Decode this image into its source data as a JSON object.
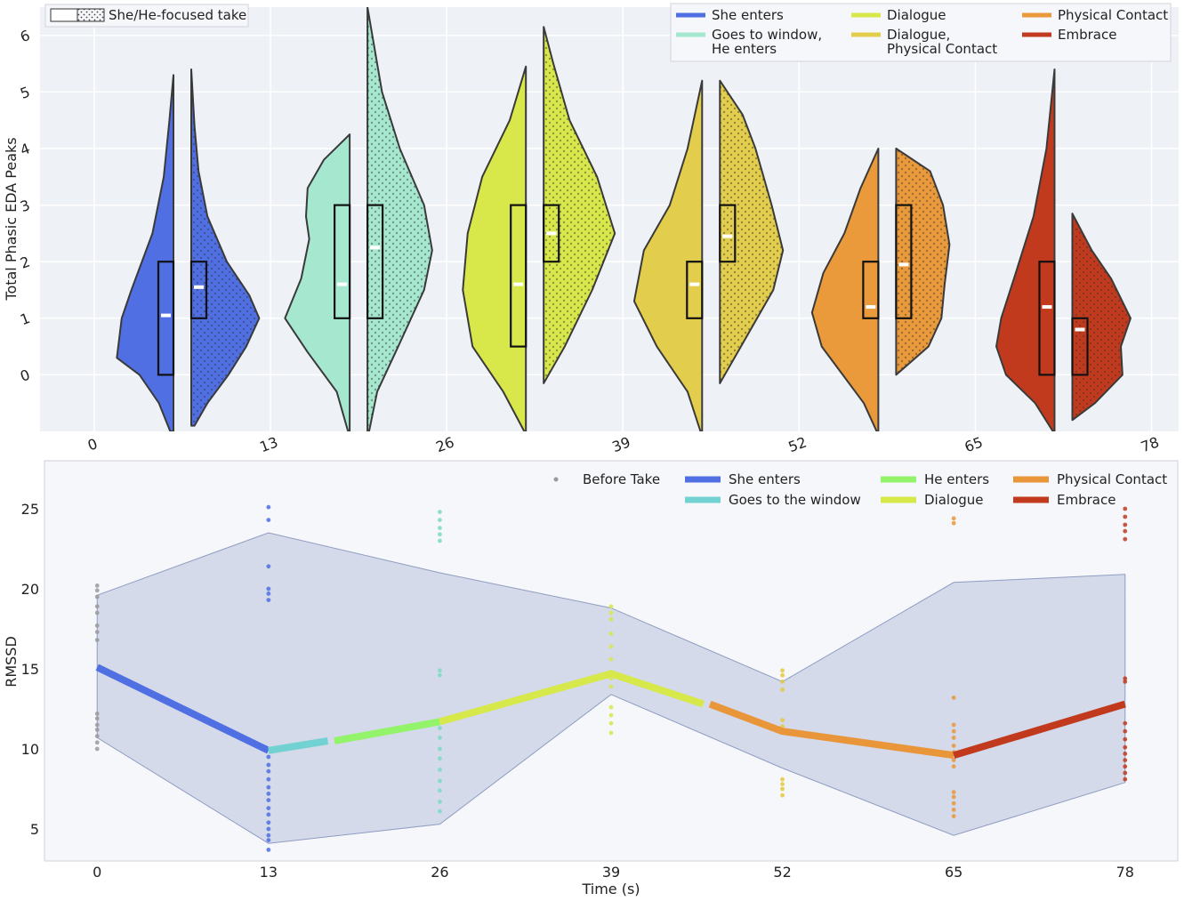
{
  "chart_data": [
    {
      "type": "violin",
      "ylabel": "Total Phasic EDA Peaks",
      "xlabel": "",
      "ylim": [
        -1,
        6.5
      ],
      "y_ticks": [
        0,
        1,
        2,
        3,
        4,
        5,
        6
      ],
      "x_ticks": [
        0,
        13,
        26,
        39,
        52,
        65,
        78
      ],
      "xlim": [
        -4,
        80
      ],
      "take_legend_label": "She/He-focused take",
      "legend": [
        "She enters",
        "Goes to window,\nHe enters",
        "Dialogue",
        "Dialogue,\nPhysical Contact",
        "Physical Contact",
        "Embrace"
      ],
      "groups": [
        {
          "name": "She enters",
          "color": "#4f6fe3",
          "x": 6.5,
          "she": {
            "min": -1,
            "max": 5.3,
            "q1": 0,
            "median": 1.05,
            "q3": 2,
            "mean": 1.05,
            "profile": [
              [
                -1,
                0.2
              ],
              [
                -0.5,
                0.9
              ],
              [
                0,
                2.1
              ],
              [
                0.3,
                3.5
              ],
              [
                1,
                3.2
              ],
              [
                1.5,
                2.6
              ],
              [
                2.5,
                1.3
              ],
              [
                3.5,
                0.6
              ],
              [
                4.5,
                0.25
              ],
              [
                5.3,
                0
              ]
            ]
          },
          "he": {
            "min": -0.9,
            "max": 5.4,
            "q1": 1,
            "median": 1.55,
            "q3": 2,
            "mean": 1.55,
            "profile": [
              [
                -0.9,
                0.2
              ],
              [
                -0.5,
                1.0
              ],
              [
                0,
                2.3
              ],
              [
                0.5,
                3.4
              ],
              [
                1,
                4.2
              ],
              [
                1.4,
                3.6
              ],
              [
                2,
                2.2
              ],
              [
                2.8,
                1.0
              ],
              [
                3.6,
                0.45
              ],
              [
                4.4,
                0.2
              ],
              [
                5.4,
                0
              ]
            ]
          }
        },
        {
          "name": "Goes to window, He enters",
          "color": "#a6e8cf",
          "x": 19.5,
          "she": {
            "min": -1,
            "max": 4.25,
            "q1": 1,
            "median": 1.6,
            "q3": 3,
            "mean": 1.6,
            "profile": [
              [
                -1,
                0.1
              ],
              [
                -0.3,
                0.8
              ],
              [
                0.4,
                2.6
              ],
              [
                1,
                4.0
              ],
              [
                1.7,
                3.0
              ],
              [
                2.4,
                2.5
              ],
              [
                2.8,
                2.7
              ],
              [
                3.3,
                2.6
              ],
              [
                3.8,
                1.6
              ],
              [
                4.25,
                0
              ]
            ]
          },
          "he": {
            "min": -1,
            "max": 6.5,
            "q1": 1,
            "median": 2.25,
            "q3": 3,
            "mean": 2.25,
            "profile": [
              [
                -1,
                0.1
              ],
              [
                -0.3,
                0.6
              ],
              [
                0.5,
                1.9
              ],
              [
                1.5,
                3.5
              ],
              [
                2.2,
                4.0
              ],
              [
                3,
                3.5
              ],
              [
                4,
                2.0
              ],
              [
                5,
                0.9
              ],
              [
                6,
                0.3
              ],
              [
                6.5,
                0
              ]
            ]
          }
        },
        {
          "name": "Dialogue",
          "color": "#d8e84a",
          "x": 32.5,
          "she": {
            "min": -1,
            "max": 5.45,
            "q1": 0.5,
            "median": 1.6,
            "q3": 3,
            "mean": 1.6,
            "profile": [
              [
                -1,
                0.1
              ],
              [
                -0.3,
                1.4
              ],
              [
                0.5,
                3.3
              ],
              [
                1.5,
                3.9
              ],
              [
                2.5,
                3.6
              ],
              [
                3.5,
                2.7
              ],
              [
                4.5,
                1.0
              ],
              [
                5.45,
                0
              ]
            ]
          },
          "he": {
            "min": -0.15,
            "max": 6.15,
            "q1": 2,
            "median": 2.5,
            "q3": 3,
            "mean": 2.5,
            "profile": [
              [
                -0.15,
                0
              ],
              [
                0.5,
                1.3
              ],
              [
                1.5,
                3.0
              ],
              [
                2.5,
                4.4
              ],
              [
                3.5,
                3.3
              ],
              [
                4.5,
                1.6
              ],
              [
                5.5,
                0.6
              ],
              [
                6.15,
                0
              ]
            ]
          }
        },
        {
          "name": "Dialogue, Physical Contact",
          "color": "#e3cd4c",
          "x": 45.5,
          "she": {
            "min": -1,
            "max": 5.2,
            "q1": 1,
            "median": 1.6,
            "q3": 2,
            "mean": 1.6,
            "profile": [
              [
                -1,
                0.1
              ],
              [
                -0.3,
                0.9
              ],
              [
                0.5,
                2.8
              ],
              [
                1.3,
                4.2
              ],
              [
                2.2,
                3.6
              ],
              [
                3,
                2.0
              ],
              [
                4,
                0.9
              ],
              [
                5.2,
                0
              ]
            ]
          },
          "he": {
            "min": -0.15,
            "max": 5.2,
            "q1": 2,
            "median": 2.45,
            "q3": 3,
            "mean": 2.45,
            "profile": [
              [
                -0.15,
                0
              ],
              [
                0.5,
                1.3
              ],
              [
                1.5,
                3.3
              ],
              [
                2.2,
                3.9
              ],
              [
                3,
                3.2
              ],
              [
                4,
                2.2
              ],
              [
                4.6,
                1.4
              ],
              [
                5.2,
                0
              ]
            ]
          }
        },
        {
          "name": "Physical Contact",
          "color": "#ea9a3a",
          "x": 58.5,
          "she": {
            "min": -1,
            "max": 4.0,
            "q1": 1,
            "median": 1.2,
            "q3": 2,
            "mean": 1.2,
            "profile": [
              [
                -1,
                0.1
              ],
              [
                -0.5,
                0.9
              ],
              [
                0,
                2.2
              ],
              [
                0.5,
                3.5
              ],
              [
                1.1,
                4.1
              ],
              [
                1.8,
                3.4
              ],
              [
                2.5,
                2.1
              ],
              [
                3.3,
                1.1
              ],
              [
                4.0,
                0
              ]
            ]
          },
          "he": {
            "min": 0,
            "max": 4.0,
            "q1": 1,
            "median": 1.95,
            "q3": 3,
            "mean": 1.95,
            "profile": [
              [
                0,
                0
              ],
              [
                0.5,
                2.0
              ],
              [
                1,
                2.8
              ],
              [
                1.6,
                3.0
              ],
              [
                2.3,
                3.3
              ],
              [
                3,
                2.9
              ],
              [
                3.6,
                2.1
              ],
              [
                4.0,
                0
              ]
            ]
          }
        },
        {
          "name": "Embrace",
          "color": "#c23a1e",
          "x": 71.5,
          "she": {
            "min": -1,
            "max": 5.4,
            "q1": 0,
            "median": 1.2,
            "q3": 2,
            "mean": 1.2,
            "profile": [
              [
                -1,
                0.1
              ],
              [
                -0.5,
                1.2
              ],
              [
                0,
                3.0
              ],
              [
                0.5,
                3.6
              ],
              [
                1,
                3.3
              ],
              [
                1.8,
                2.4
              ],
              [
                2.8,
                1.3
              ],
              [
                4,
                0.5
              ],
              [
                5.4,
                0
              ]
            ]
          },
          "he": {
            "min": -0.8,
            "max": 2.85,
            "q1": 0,
            "median": 0.8,
            "q3": 1,
            "mean": 0.8,
            "profile": [
              [
                -0.8,
                0
              ],
              [
                -0.5,
                1.4
              ],
              [
                0,
                3.1
              ],
              [
                0.5,
                3.0
              ],
              [
                1,
                3.6
              ],
              [
                1.7,
                2.4
              ],
              [
                2.2,
                1.2
              ],
              [
                2.85,
                0
              ]
            ]
          }
        }
      ]
    },
    {
      "type": "line",
      "xlabel": "Time (s)",
      "ylabel": "RMSSD",
      "xlim": [
        -4,
        82
      ],
      "ylim": [
        3,
        28
      ],
      "x_ticks": [
        0,
        13,
        26,
        39,
        52,
        65,
        78
      ],
      "y_ticks": [
        5,
        10,
        15,
        20,
        25
      ],
      "legend": [
        {
          "label": "Before Take",
          "color": "#9a9a9a",
          "kind": "dot"
        },
        {
          "label": "She enters",
          "color": "#4f6fe3",
          "kind": "line"
        },
        {
          "label": "Goes to the window",
          "color": "#72d2d2",
          "kind": "line"
        },
        {
          "label": "He enters",
          "color": "#93f36a",
          "kind": "line"
        },
        {
          "label": "Dialogue",
          "color": "#d6e84a",
          "kind": "line"
        },
        {
          "label": "Physical Contact",
          "color": "#e9963a",
          "kind": "line"
        },
        {
          "label": "Embrace",
          "color": "#c23a1e",
          "kind": "line"
        }
      ],
      "band": {
        "x": [
          0,
          13,
          26,
          39,
          52,
          65,
          78
        ],
        "upper": [
          19.6,
          23.5,
          21.0,
          18.8,
          14.2,
          20.4,
          20.9
        ],
        "lower": [
          10.7,
          4.1,
          5.3,
          13.4,
          8.8,
          4.6,
          7.9
        ]
      },
      "segments": [
        {
          "name": "She enters",
          "color": "#4f6fe3",
          "x": [
            0,
            13
          ],
          "y": [
            15.1,
            9.9
          ]
        },
        {
          "name": "Goes to the window",
          "color": "#72d2d2",
          "x": [
            13,
            17.5
          ],
          "y": [
            9.9,
            10.5
          ]
        },
        {
          "name": "He enters",
          "color": "#93f36a",
          "x": [
            18,
            26
          ],
          "y": [
            10.5,
            11.7
          ]
        },
        {
          "name": "Dialogue",
          "color": "#d6e84a",
          "x": [
            26,
            39,
            46
          ],
          "y": [
            11.7,
            14.7,
            12.8
          ]
        },
        {
          "name": "Physical Contact",
          "color": "#e9963a",
          "x": [
            46.5,
            52,
            65
          ],
          "y": [
            12.8,
            11.1,
            9.6
          ]
        },
        {
          "name": "Embrace",
          "color": "#c23a1e",
          "x": [
            65,
            78
          ],
          "y": [
            9.6,
            12.8
          ]
        }
      ],
      "scatter": [
        {
          "x": 0,
          "color": "#9a9a9a",
          "values": [
            10.0,
            10.4,
            10.8,
            11.2,
            11.5,
            11.9,
            12.2,
            16.8,
            17.3,
            17.7,
            18.5,
            18.9,
            19.5,
            19.9,
            20.2
          ]
        },
        {
          "x": 13,
          "color": "#4f6fe3",
          "values": [
            3.7,
            4.3,
            4.6,
            5.0,
            5.4,
            5.9,
            6.3,
            6.8,
            7.2,
            7.6,
            8.1,
            8.6,
            9.0,
            9.5,
            19.3,
            19.7,
            20.0,
            21.4,
            24.3,
            25.1
          ]
        },
        {
          "x": 26,
          "color": "#7dd9c4",
          "values": [
            6.1,
            6.7,
            7.4,
            8.0,
            8.7,
            9.4,
            10.0,
            10.7,
            11.3,
            14.6,
            14.9,
            23.0,
            23.4,
            23.8,
            24.3,
            24.8
          ]
        },
        {
          "x": 39,
          "color": "#d6e84a",
          "values": [
            11.0,
            11.6,
            12.1,
            12.6,
            13.9,
            14.4,
            14.8,
            15.6,
            16.4,
            17.2,
            18.1,
            18.5,
            18.9
          ]
        },
        {
          "x": 52,
          "color": "#e3c840",
          "values": [
            7.1,
            7.5,
            7.8,
            8.1,
            11.4,
            11.8,
            13.7,
            14.2,
            14.6,
            14.9
          ]
        },
        {
          "x": 65,
          "color": "#e9963a",
          "values": [
            5.8,
            6.2,
            6.6,
            7.0,
            7.3,
            8.9,
            9.3,
            9.8,
            10.2,
            10.7,
            11.1,
            11.5,
            13.2,
            24.1,
            24.4
          ]
        },
        {
          "x": 78,
          "color": "#c23a1e",
          "values": [
            8.1,
            8.5,
            8.9,
            9.3,
            9.7,
            10.1,
            10.6,
            11.1,
            11.6,
            14.2,
            14.4,
            23.1,
            23.6,
            24.0,
            24.5,
            25.0
          ]
        }
      ]
    }
  ]
}
